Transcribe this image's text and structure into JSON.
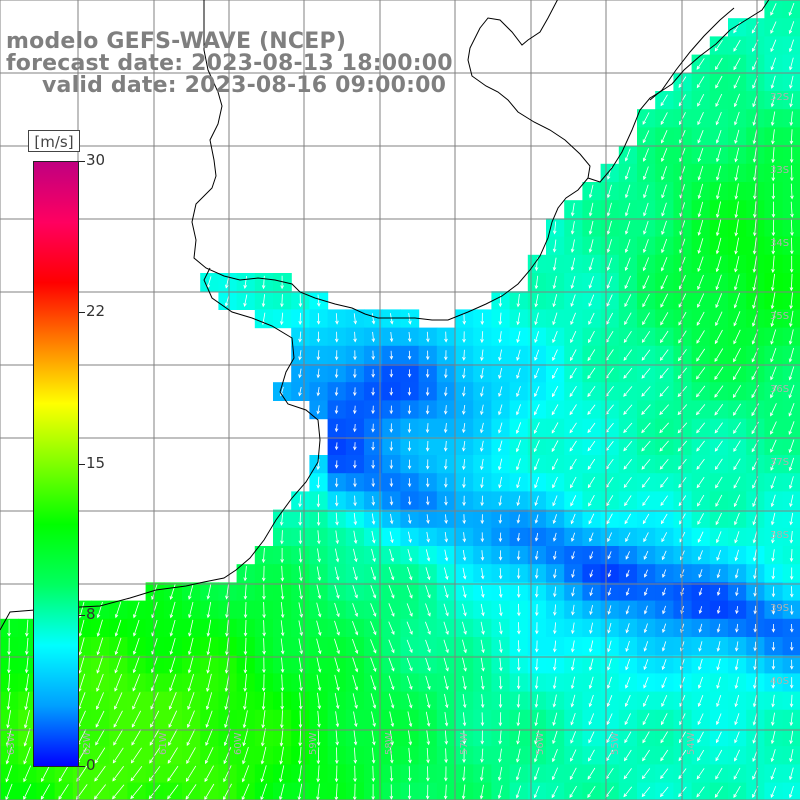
{
  "title": {
    "model": "modelo GEFS-WAVE (NCEP)",
    "forecast": "forecast date: 2023-08-13 18:00:00",
    "valid": "valid date: 2023-08-16 09:00:00"
  },
  "colorbar": {
    "unit": "[m/s]",
    "ticks": [
      "30",
      "22",
      "15",
      "8",
      "0"
    ],
    "tick_values": [
      30,
      22,
      15,
      8,
      0
    ],
    "colors": [
      "#0000ff",
      "#00a0ff",
      "#00ffff",
      "#00ff60",
      "#00ff00",
      "#80ff00",
      "#ffff00",
      "#ff8000",
      "#ff0000",
      "#ff0060",
      "#c00080"
    ]
  },
  "map": {
    "lat_labels": [
      "32S",
      "33S",
      "34S",
      "35S",
      "36S",
      "37S",
      "38S",
      "39S",
      "40S"
    ],
    "lon_labels": [
      "63W",
      "62W",
      "61W",
      "60W",
      "59W",
      "58W",
      "57W",
      "56W",
      "55W",
      "54W"
    ],
    "colors": {
      "land": "#ffffff",
      "grid": "#808080",
      "coast": "#000000",
      "arrow": "#ffffff"
    }
  }
}
